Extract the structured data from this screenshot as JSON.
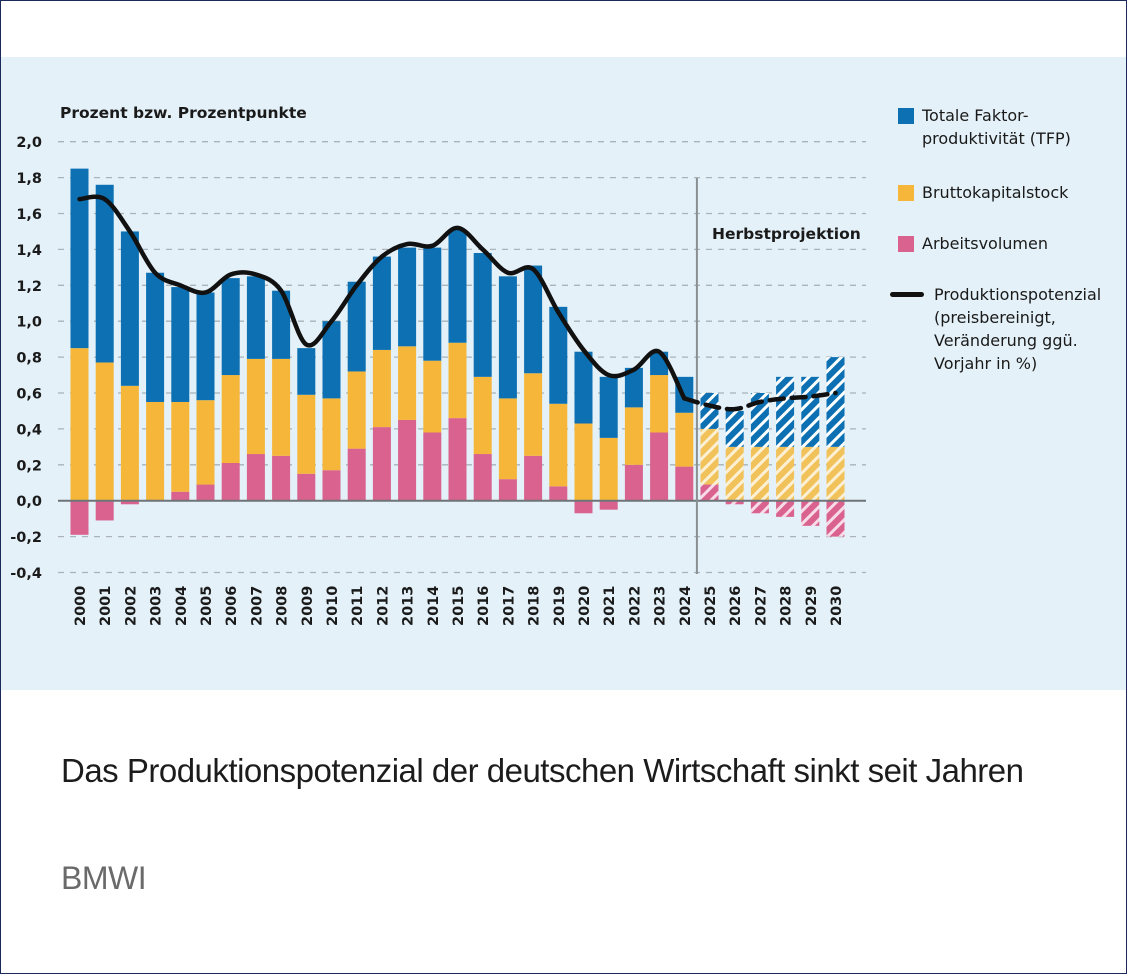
{
  "caption": {
    "title": "Das Produktionspotenzial der deutschen Wirtschaft sinkt seit Jahren",
    "source": "BMWI"
  },
  "colors": {
    "tfp": "#0c70b2",
    "capital": "#f5b63a",
    "labor": "#d9628e",
    "line": "#111111",
    "panel": "#e4f1f8"
  },
  "chart_data": {
    "type": "bar",
    "stacked": true,
    "title": "",
    "ylabel": "Prozent bzw. Prozentpunkte",
    "xlabel": "",
    "ylim": [
      -0.4,
      2.0
    ],
    "yticks": [
      "2,0",
      "1,8",
      "1,6",
      "1,4",
      "1,2",
      "1,0",
      "0,8",
      "0,6",
      "0,4",
      "0,2",
      "0,0",
      "-0,2",
      "-0,4"
    ],
    "ytick_values": [
      2.0,
      1.8,
      1.6,
      1.4,
      1.2,
      1.0,
      0.8,
      0.6,
      0.4,
      0.2,
      0.0,
      -0.2,
      -0.4
    ],
    "grid": true,
    "legend_position": "right",
    "categories": [
      "2000",
      "2001",
      "2002",
      "2003",
      "2004",
      "2005",
      "2006",
      "2007",
      "2008",
      "2009",
      "2010",
      "2011",
      "2012",
      "2013",
      "2014",
      "2015",
      "2016",
      "2017",
      "2018",
      "2019",
      "2020",
      "2021",
      "2022",
      "2023",
      "2024",
      "2025",
      "2026",
      "2027",
      "2028",
      "2029",
      "2030"
    ],
    "projection_start": "2025",
    "annotation": "Herbstprojektion",
    "series": [
      {
        "name": "Arbeitsvolumen",
        "key": "labor",
        "values": [
          -0.19,
          -0.11,
          -0.02,
          0.0,
          0.05,
          0.09,
          0.21,
          0.26,
          0.25,
          0.15,
          0.17,
          0.29,
          0.41,
          0.45,
          0.38,
          0.46,
          0.26,
          0.12,
          0.25,
          0.08,
          -0.07,
          -0.05,
          0.2,
          0.38,
          0.19,
          0.09,
          -0.02,
          -0.07,
          -0.09,
          -0.14,
          -0.2
        ]
      },
      {
        "name": "Bruttokapitalstock",
        "key": "capital",
        "values": [
          0.85,
          0.77,
          0.64,
          0.55,
          0.5,
          0.47,
          0.49,
          0.53,
          0.54,
          0.44,
          0.4,
          0.43,
          0.43,
          0.41,
          0.4,
          0.42,
          0.43,
          0.45,
          0.46,
          0.46,
          0.43,
          0.35,
          0.32,
          0.32,
          0.3,
          0.31,
          0.3,
          0.3,
          0.3,
          0.3,
          0.3
        ]
      },
      {
        "name": "Totale Faktorproduktivität (TFP)",
        "key": "tfp",
        "values": [
          1.0,
          0.99,
          0.86,
          0.72,
          0.64,
          0.6,
          0.54,
          0.46,
          0.38,
          0.26,
          0.43,
          0.5,
          0.52,
          0.55,
          0.63,
          0.63,
          0.69,
          0.68,
          0.6,
          0.54,
          0.4,
          0.34,
          0.22,
          0.13,
          0.2,
          0.2,
          0.2,
          0.3,
          0.39,
          0.39,
          0.5
        ]
      },
      {
        "name": "Produktionspotenzial (preisbereinigt, Veränderung ggü. Vorjahr in %)",
        "key": "line",
        "type": "line",
        "values": [
          1.68,
          1.68,
          1.5,
          1.27,
          1.2,
          1.16,
          1.26,
          1.26,
          1.17,
          0.87,
          1.0,
          1.2,
          1.36,
          1.43,
          1.42,
          1.52,
          1.4,
          1.27,
          1.29,
          1.05,
          0.84,
          0.7,
          0.73,
          0.83,
          0.57,
          0.53,
          0.51,
          0.55,
          0.57,
          0.58,
          0.6
        ]
      }
    ]
  },
  "legend": {
    "tfp_line1": "Totale Faktor-",
    "tfp_line2": "produktivität (TFP)",
    "capital": "Bruttokapitalstock",
    "labor": "Arbeitsvolumen",
    "line_l1": "Produktionspotenzial",
    "line_l2": "(preisbereinigt,",
    "line_l3": "Veränderung ggü.",
    "line_l4": "Vorjahr in %)"
  }
}
